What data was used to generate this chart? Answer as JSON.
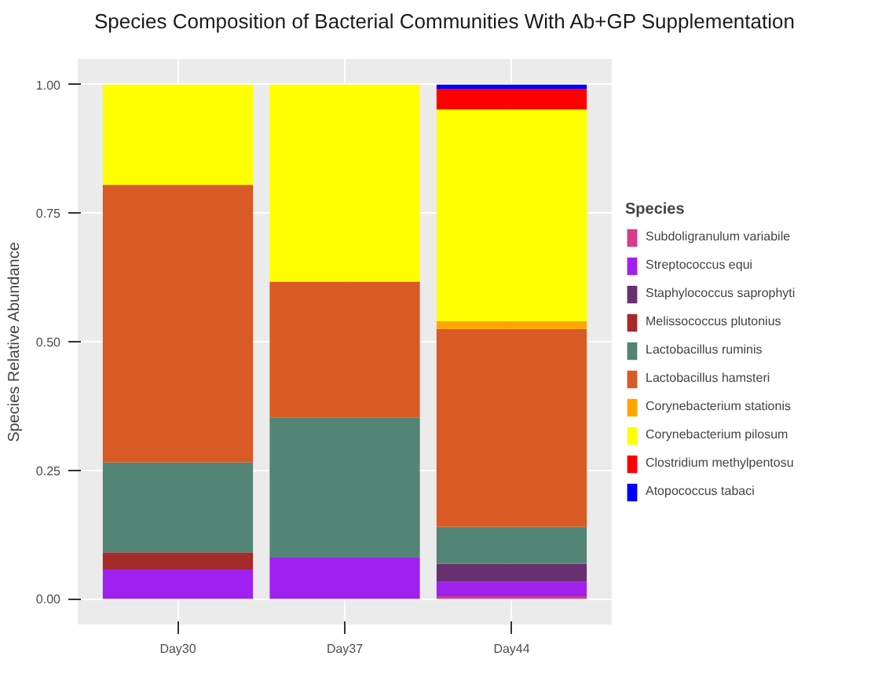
{
  "chart_data": {
    "type": "bar",
    "stacked": true,
    "title": "Species Composition of Bacterial Communities With Ab+GP Supplementation",
    "ylabel": "Species Relative Abundance",
    "legend_title": "Species",
    "legend": "right",
    "grid": true,
    "categories": [
      "Day30",
      "Day37",
      "Day44"
    ],
    "ylim": [
      -0.05,
      1.05
    ],
    "yticks": [
      {
        "value": 0,
        "label": "0.00"
      },
      {
        "value": 0.25,
        "label": "0.25"
      },
      {
        "value": 0.5,
        "label": "0.50"
      },
      {
        "value": 0.75,
        "label": "0.75"
      },
      {
        "value": 1,
        "label": "1.00"
      }
    ],
    "series": [
      {
        "name": "Subdoligranulum variabile",
        "color": "#d63c8a",
        "values": [
          0,
          0,
          0.005
        ]
      },
      {
        "name": "Streptococcus equi",
        "color": "#a020f0",
        "values": [
          0.057,
          0.08,
          0.028
        ]
      },
      {
        "name": "Staphylococcus saprophyti",
        "color": "#68306e",
        "values": [
          0,
          0,
          0.035
        ]
      },
      {
        "name": "Melissococcus plutonius",
        "color": "#a52a2a",
        "values": [
          0.033,
          0,
          0
        ]
      },
      {
        "name": "Lactobacillus ruminis",
        "color": "#528575",
        "values": [
          0.175,
          0.272,
          0.072
        ]
      },
      {
        "name": "Lactobacillus hamsteri",
        "color": "#d95a24",
        "values": [
          0.54,
          0.265,
          0.385
        ]
      },
      {
        "name": "Corynebacterium stationis",
        "color": "#ffa500",
        "values": [
          0,
          0,
          0.015
        ]
      },
      {
        "name": "Corynebacterium pilosum",
        "color": "#ffff00",
        "values": [
          0.195,
          0.383,
          0.412
        ]
      },
      {
        "name": "Clostridium methylpentosu",
        "color": "#ff0000",
        "values": [
          0,
          0,
          0.04
        ]
      },
      {
        "name": "Atopococcus tabaci",
        "color": "#0000ff",
        "values": [
          0,
          0,
          0.008
        ]
      }
    ]
  }
}
